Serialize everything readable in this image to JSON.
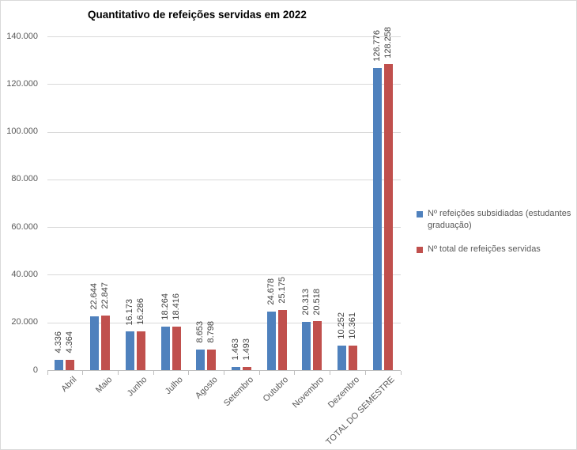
{
  "chart_data": {
    "type": "bar",
    "title": "Quantitativo de refeições servidas em 2022",
    "categories": [
      "Abril",
      "Maio",
      "Junho",
      "Julho",
      "Agosto",
      "Setembro",
      "Outubro",
      "Novembro",
      "Dezembro",
      "TOTAL DO SEMESTRE"
    ],
    "series": [
      {
        "name": "Nº refeições subsidiadas (estudantes graduação)",
        "color": "#4F81BD",
        "values": [
          4336,
          22644,
          16173,
          18264,
          8653,
          1463,
          24678,
          20313,
          10252,
          126776
        ],
        "value_labels": [
          "4.336",
          "22.644",
          "16.173",
          "18.264",
          "8.653",
          "1.463",
          "24.678",
          "20.313",
          "10.252",
          "126.776"
        ]
      },
      {
        "name": "Nº total de refeições servidas",
        "color": "#C0504D",
        "values": [
          4364,
          22847,
          16286,
          18416,
          8798,
          1493,
          25175,
          20518,
          10361,
          128258
        ],
        "value_labels": [
          "4.364",
          "22.847",
          "16.286",
          "18.416",
          "8.798",
          "1.493",
          "25.175",
          "20.518",
          "10.361",
          "128.258"
        ]
      }
    ],
    "y_axis": {
      "min": 0,
      "max": 140000,
      "step": 20000,
      "tick_labels": [
        "0",
        "20.000",
        "40.000",
        "60.000",
        "80.000",
        "100.000",
        "120.000",
        "140.000"
      ]
    },
    "legend_position": "right",
    "grid": true,
    "colors": {
      "gridline": "#D9D9D9",
      "axis": "#BFBFBF",
      "axis_text": "#595959",
      "data_label": "#404040",
      "title": "#000000",
      "border": "#D9D9D9"
    }
  }
}
